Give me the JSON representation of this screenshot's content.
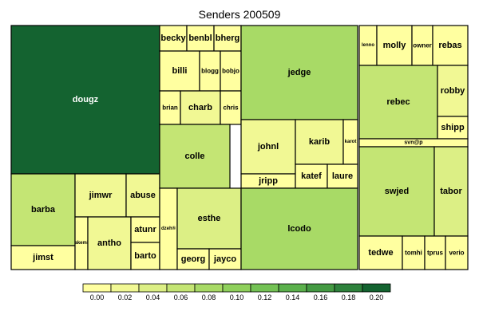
{
  "chart_data": {
    "type": "treemap",
    "title": "Senders 200509",
    "value_scale": {
      "ticks": [
        "0.00",
        "0.02",
        "0.04",
        "0.06",
        "0.08",
        "0.10",
        "0.12",
        "0.14",
        "0.16",
        "0.18",
        "0.20"
      ],
      "colors": [
        "#ffffa0",
        "#f1f894",
        "#dcef85",
        "#c4e574",
        "#a8da66",
        "#8fd05c",
        "#74c255",
        "#5bb04c",
        "#449a43",
        "#2e823c",
        "#146330"
      ]
    },
    "cells": [
      {
        "label": "dougz",
        "value": 0.2
      },
      {
        "label": "barba",
        "value": 0.05
      },
      {
        "label": "jimst",
        "value": 0.01
      },
      {
        "label": "jimwr",
        "value": 0.02
      },
      {
        "label": "abuse",
        "value": 0.02
      },
      {
        "label": "akemi",
        "value": 0.0
      },
      {
        "label": "antho",
        "value": 0.02
      },
      {
        "label": "atunr",
        "value": 0.01
      },
      {
        "label": "barto",
        "value": 0.01
      },
      {
        "label": "becky",
        "value": 0.01
      },
      {
        "label": "benbl",
        "value": 0.01
      },
      {
        "label": "bherg",
        "value": 0.01
      },
      {
        "label": "billi",
        "value": 0.01
      },
      {
        "label": "blogg",
        "value": 0.01
      },
      {
        "label": "bobjo",
        "value": 0.01
      },
      {
        "label": "brian",
        "value": 0.01
      },
      {
        "label": "charb",
        "value": 0.02
      },
      {
        "label": "chris",
        "value": 0.01
      },
      {
        "label": "colle",
        "value": 0.05
      },
      {
        "label": "dzeh®",
        "value": 0.01
      },
      {
        "label": "esthe",
        "value": 0.03
      },
      {
        "label": "georg",
        "value": 0.01
      },
      {
        "label": "jayco",
        "value": 0.01
      },
      {
        "label": "jedge",
        "value": 0.08
      },
      {
        "label": "johnl",
        "value": 0.02
      },
      {
        "label": "karib",
        "value": 0.02
      },
      {
        "label": "karot",
        "value": 0.01
      },
      {
        "label": "jripp",
        "value": 0.01
      },
      {
        "label": "katef",
        "value": 0.01
      },
      {
        "label": "laure",
        "value": 0.01
      },
      {
        "label": "lcodo",
        "value": 0.08
      },
      {
        "label": "lenno",
        "value": 0.01
      },
      {
        "label": "molly",
        "value": 0.01
      },
      {
        "label": "owner",
        "value": 0.01
      },
      {
        "label": "rebas",
        "value": 0.01
      },
      {
        "label": "rebec",
        "value": 0.06
      },
      {
        "label": "robby",
        "value": 0.02
      },
      {
        "label": "shipp",
        "value": 0.01
      },
      {
        "label": "svn@p",
        "value": 0.0
      },
      {
        "label": "swjed",
        "value": 0.06
      },
      {
        "label": "tabor",
        "value": 0.03
      },
      {
        "label": "tedwe",
        "value": 0.01
      },
      {
        "label": "tomhi",
        "value": 0.01
      },
      {
        "label": "tprus",
        "value": 0.01
      },
      {
        "label": "verio",
        "value": 0.01
      }
    ]
  }
}
